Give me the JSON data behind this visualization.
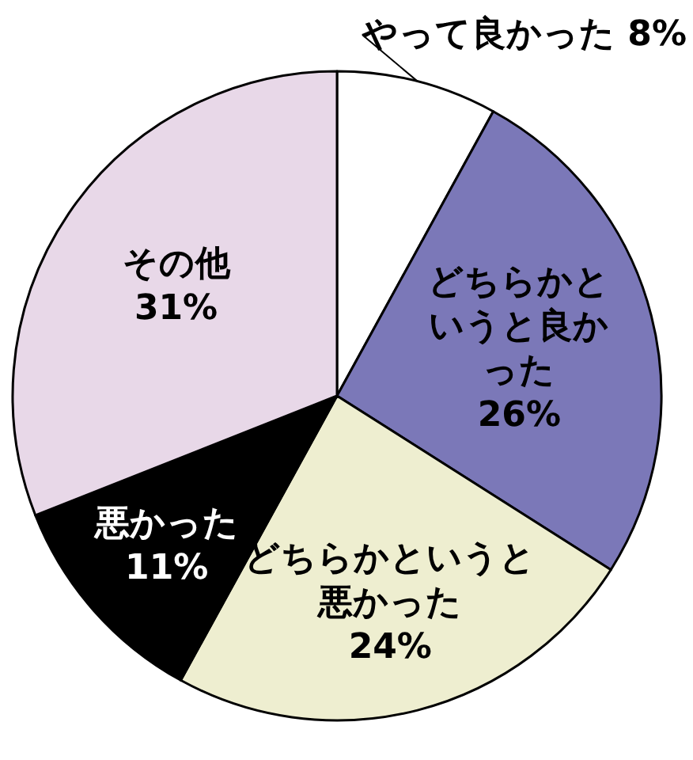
{
  "chart_data": {
    "type": "pie",
    "categories": [
      "やって良かった",
      "どちらかというと良かった",
      "どちらかというと悪かった",
      "悪かった",
      "その他"
    ],
    "values": [
      8,
      26,
      24,
      11,
      31
    ],
    "value_labels": [
      "8%",
      "26%",
      "24%",
      "11%",
      "31%"
    ],
    "colors": [
      "#ffffff",
      "#7b78b8",
      "#eeeed0",
      "#000000",
      "#e8d8e8"
    ]
  }
}
